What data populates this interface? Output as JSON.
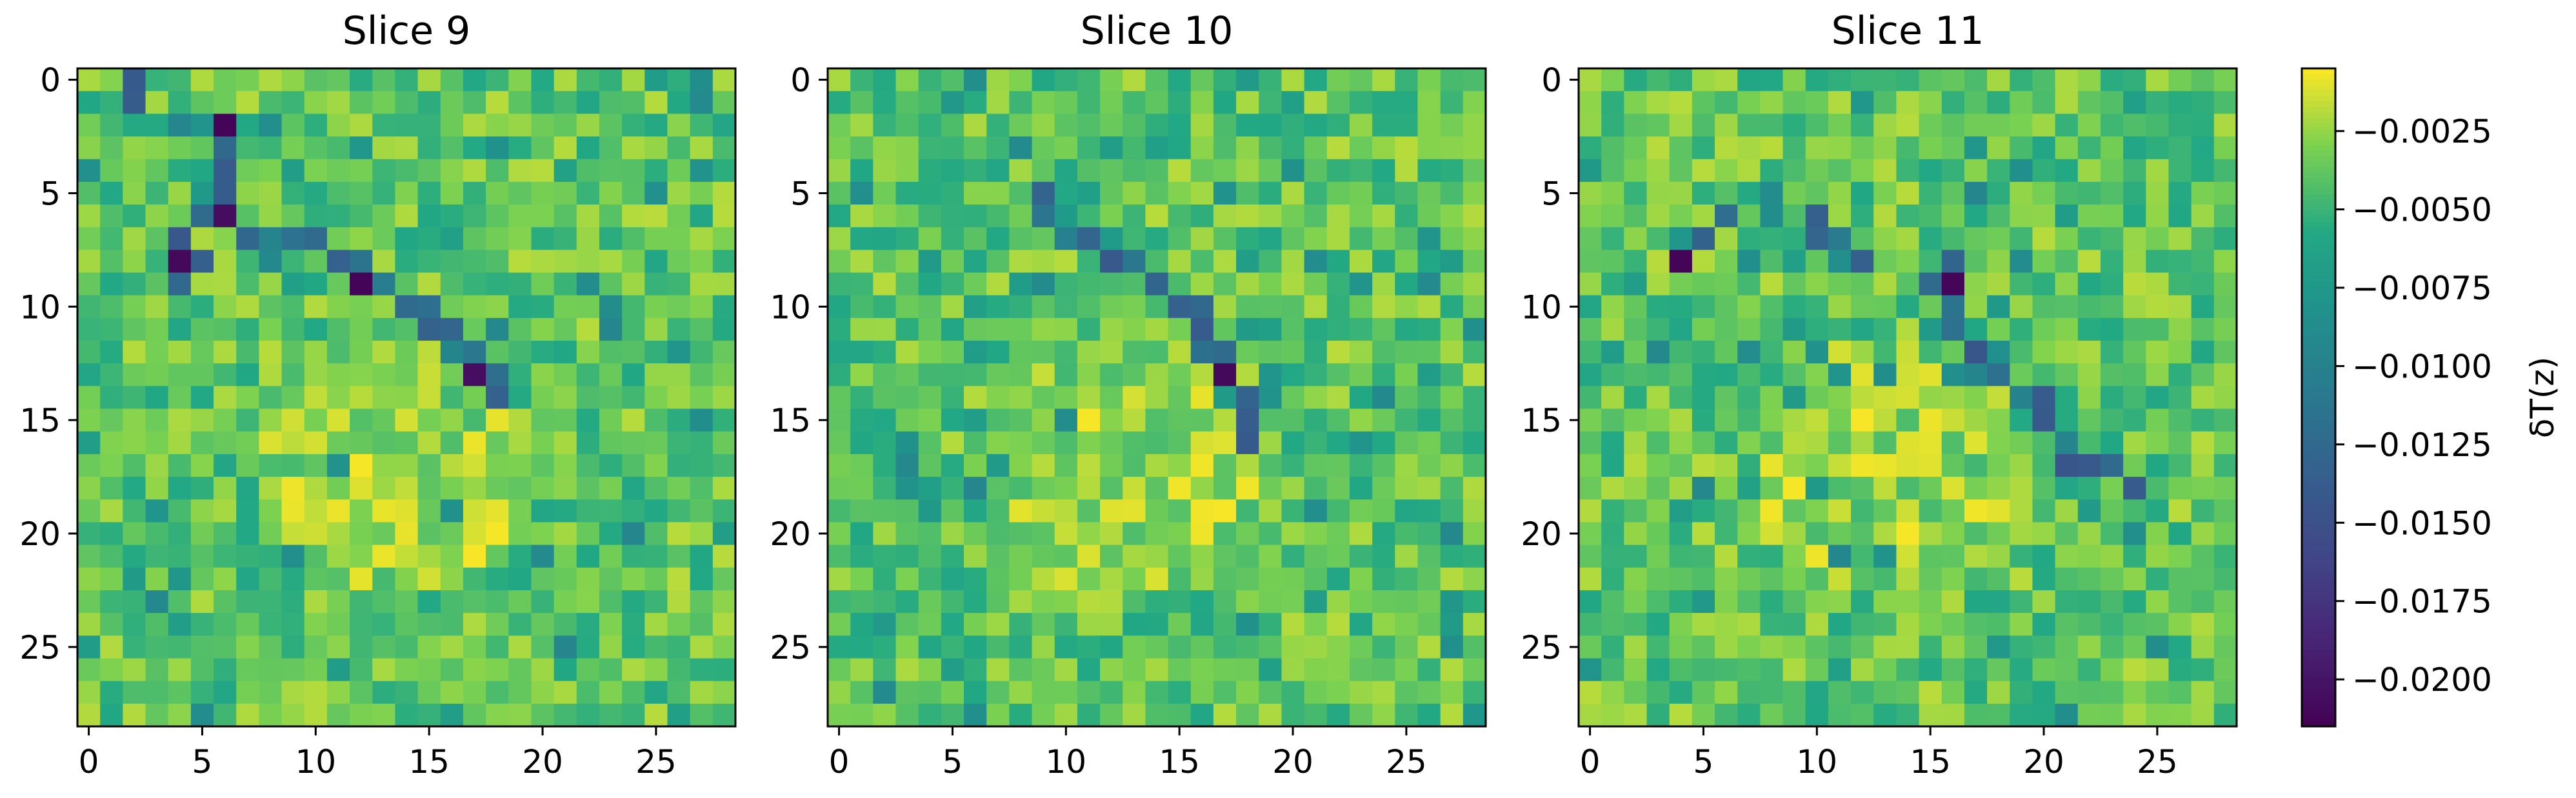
{
  "chart_data": [
    {
      "type": "heatmap",
      "title": "Slice 9",
      "grid": false,
      "rows": 29,
      "cols": 29,
      "xticks": [
        0,
        5,
        10,
        15,
        20,
        25
      ],
      "yticks": [
        0,
        5,
        10,
        15,
        20,
        25
      ],
      "ridge": [
        [
          2,
          0
        ],
        [
          2,
          1
        ],
        [
          6,
          2
        ],
        [
          6,
          3
        ],
        [
          6,
          4
        ],
        [
          6,
          5
        ],
        [
          5,
          6
        ],
        [
          6,
          6
        ],
        [
          4,
          7
        ],
        [
          5,
          8
        ],
        [
          4,
          9
        ],
        [
          7,
          7
        ],
        [
          8,
          7
        ],
        [
          9,
          7
        ],
        [
          10,
          7
        ],
        [
          11,
          8
        ],
        [
          12,
          8
        ],
        [
          12,
          9
        ],
        [
          13,
          9
        ],
        [
          14,
          10
        ],
        [
          15,
          10
        ],
        [
          15,
          11
        ],
        [
          16,
          11
        ],
        [
          16,
          12
        ],
        [
          17,
          12
        ],
        [
          17,
          13
        ],
        [
          18,
          13
        ],
        [
          18,
          14
        ]
      ],
      "deep": [
        [
          6,
          2
        ],
        [
          6,
          6
        ],
        [
          4,
          8
        ],
        [
          12,
          9
        ],
        [
          17,
          13
        ]
      ],
      "values_range": [
        -0.0215,
        -0.0005
      ],
      "colormap": "viridis"
    },
    {
      "type": "heatmap",
      "title": "Slice 10",
      "grid": false,
      "rows": 29,
      "cols": 29,
      "xticks": [
        0,
        5,
        10,
        15,
        20,
        25
      ],
      "yticks": [
        0,
        5,
        10,
        15,
        20,
        25
      ],
      "ridge": [
        [
          9,
          5
        ],
        [
          9,
          6
        ],
        [
          10,
          7
        ],
        [
          11,
          7
        ],
        [
          12,
          8
        ],
        [
          13,
          8
        ],
        [
          14,
          9
        ],
        [
          15,
          10
        ],
        [
          16,
          10
        ],
        [
          16,
          11
        ],
        [
          16,
          12
        ],
        [
          17,
          12
        ],
        [
          17,
          13
        ],
        [
          18,
          14
        ],
        [
          18,
          15
        ],
        [
          18,
          16
        ]
      ],
      "deep": [
        [
          17,
          13
        ]
      ],
      "values_range": [
        -0.0215,
        -0.0005
      ],
      "colormap": "viridis"
    },
    {
      "type": "heatmap",
      "title": "Slice 11",
      "grid": false,
      "rows": 29,
      "cols": 29,
      "xticks": [
        0,
        5,
        10,
        15,
        20,
        25
      ],
      "yticks": [
        0,
        5,
        10,
        15,
        20,
        25
      ],
      "ridge": [
        [
          4,
          8
        ],
        [
          5,
          7
        ],
        [
          6,
          6
        ],
        [
          10,
          6
        ],
        [
          10,
          7
        ],
        [
          11,
          7
        ],
        [
          12,
          8
        ],
        [
          15,
          9
        ],
        [
          16,
          8
        ],
        [
          16,
          9
        ],
        [
          16,
          10
        ],
        [
          16,
          11
        ],
        [
          17,
          12
        ],
        [
          17,
          13
        ],
        [
          18,
          13
        ],
        [
          19,
          14
        ],
        [
          20,
          14
        ],
        [
          20,
          15
        ],
        [
          21,
          16
        ],
        [
          21,
          17
        ],
        [
          22,
          17
        ],
        [
          23,
          17
        ],
        [
          24,
          18
        ]
      ],
      "deep": [
        [
          4,
          8
        ],
        [
          16,
          9
        ]
      ],
      "values_range": [
        -0.0215,
        -0.0005
      ],
      "colormap": "viridis"
    }
  ],
  "colorbar": {
    "label": "δT(z)",
    "vmin": -0.0215,
    "vmax": -0.0005,
    "ticks": [
      -0.0025,
      -0.005,
      -0.0075,
      -0.01,
      -0.0125,
      -0.015,
      -0.0175,
      -0.02
    ],
    "tick_labels": [
      "−0.0025",
      "−0.0050",
      "−0.0075",
      "−0.0100",
      "−0.0125",
      "−0.0150",
      "−0.0175",
      "−0.0200"
    ]
  },
  "colors": {
    "axis": "#000000",
    "background": "#ffffff"
  }
}
